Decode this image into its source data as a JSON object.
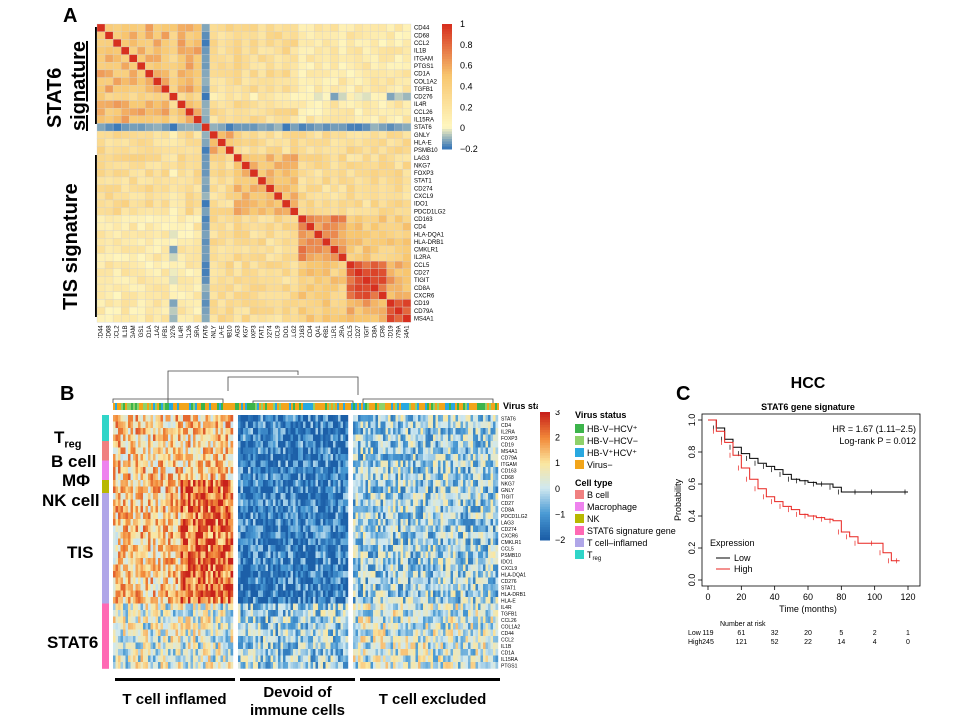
{
  "panels": {
    "a": {
      "letter": "A",
      "signature_labels": [
        {
          "text": "STAT6",
          "id": "stat6-main"
        },
        {
          "text": "signature",
          "id": "stat6-sub"
        },
        {
          "text": "TIS signature",
          "id": "tis"
        }
      ],
      "colorbar": {
        "ticks": [
          "1",
          "0.8",
          "0.6",
          "0.4",
          "0.2",
          "0",
          "−0.2"
        ],
        "min": -0.2,
        "max": 1
      },
      "colors": {
        "high": "#d7301f",
        "mid": "#fff7c0",
        "low": "#3a78b8"
      }
    },
    "b": {
      "letter": "B",
      "row_groups": [
        {
          "label": "T",
          "sub": "reg",
          "id": "treg"
        },
        {
          "label": "B cell",
          "sub": "",
          "id": "bcell"
        },
        {
          "label": "MΦ",
          "sub": "",
          "id": "mphi"
        },
        {
          "label": "NK cell",
          "sub": "",
          "id": "nk"
        },
        {
          "label": "TIS",
          "sub": "",
          "id": "tis"
        },
        {
          "label": "STAT6",
          "sub": "",
          "id": "stat6"
        }
      ],
      "clusters": [
        "T cell inflamed",
        "Devoid of\nimmune cells",
        "T cell excluded"
      ],
      "virus_status_label": "Virus status",
      "colorbar_ticks": [
        "3",
        "2",
        "1",
        "0",
        "−1",
        "−2"
      ],
      "legend_virus_title": "Virus status",
      "legend_virus": [
        {
          "label": "HB-V−HCV⁺",
          "color": "#3cb44b"
        },
        {
          "label": "HB-V−HCV−",
          "color": "#8fd16a"
        },
        {
          "label": "HB-V⁺HCV⁺",
          "color": "#29a8e0"
        },
        {
          "label": "Virus−",
          "color": "#f2a51a"
        }
      ],
      "legend_cell_title": "Cell type",
      "legend_cell": [
        {
          "label": "B cell",
          "color": "#f08080"
        },
        {
          "label": "Macrophage",
          "color": "#ee82ee"
        },
        {
          "label": "NK",
          "color": "#b8b800"
        },
        {
          "label": "STAT6 signature gene",
          "color": "#ff69b4"
        },
        {
          "label": "T cell–inflamed",
          "color": "#b0a6e8"
        },
        {
          "label": "T",
          "sub": "reg",
          "color": "#30d5c8"
        }
      ]
    },
    "c": {
      "letter": "C",
      "title": "HCC",
      "subtitle": "STAT6 gene signature",
      "hr_text": "HR = 1.67 (1.11–2.5)",
      "logrank_text": "Log-rank P = 0.012",
      "ylabel": "Probability",
      "xlabel": "Time (months)",
      "expression_title": "Expression",
      "number_at_risk_label": "Number at risk"
    }
  },
  "chart_data": [
    {
      "type": "heatmap",
      "genes": [
        "CD44",
        "CD68",
        "CCL2",
        "IL1B",
        "ITGAM",
        "PTGS1",
        "CD1A",
        "COL1A2",
        "TGFB1",
        "CD276",
        "IL4R",
        "CCL26",
        "IL15RA",
        "STAT6",
        "GNLY",
        "HLA-E",
        "PSMB10",
        "LAG3",
        "NKG7",
        "FOXP3",
        "STAT1",
        "CD274",
        "CXCL9",
        "IDO1",
        "PDCD1LG2",
        "CD163",
        "CD4",
        "HLA-DQA1",
        "HLA-DRB1",
        "CMKLR1",
        "IL2RA",
        "CCL5",
        "CD27",
        "TIGIT",
        "CD8A",
        "CXCR6",
        "CD19",
        "CD79A",
        "MS4A1"
      ],
      "value_range": [
        -0.2,
        1
      ]
    },
    {
      "type": "heatmap",
      "genes": [
        "STAT6",
        "CD4",
        "IL2RA",
        "FOXP3",
        "CD19",
        "MS4A1",
        "CD79A",
        "ITGAM",
        "CD163",
        "CD68",
        "NKG7",
        "GNLY",
        "TIGIT",
        "CD27",
        "CD8A",
        "PDCD1LG2",
        "LAG3",
        "CD274",
        "CXCR6",
        "CMKLR1",
        "CCL5",
        "PSMB10",
        "IDO1",
        "CXCL9",
        "HLA-DQA1",
        "CD276",
        "STAT1",
        "HLA-DRB1",
        "HLA-E",
        "IL4R",
        "TGFB1",
        "CCL26",
        "COL1A2",
        "CD44",
        "CCL2",
        "IL1B",
        "CD1A",
        "IL15RA",
        "PTGS1"
      ],
      "clusters": [
        "T cell inflamed",
        "Devoid of immune cells",
        "T cell excluded"
      ],
      "value_range": [
        -2,
        3
      ]
    },
    {
      "type": "line",
      "x_ticks": [
        0,
        20,
        40,
        60,
        80,
        100,
        120
      ],
      "y_ticks": [
        0.0,
        0.2,
        0.4,
        0.6,
        0.8,
        1.0
      ],
      "xlim": [
        0,
        120
      ],
      "ylim": [
        0,
        1
      ],
      "series": [
        {
          "name": "Low",
          "color": "#000000",
          "x": [
            0,
            5,
            10,
            15,
            20,
            25,
            30,
            35,
            40,
            45,
            50,
            55,
            60,
            65,
            70,
            75,
            80,
            90,
            100,
            120
          ],
          "y": [
            1.0,
            0.95,
            0.88,
            0.83,
            0.79,
            0.76,
            0.73,
            0.71,
            0.69,
            0.66,
            0.63,
            0.62,
            0.61,
            0.6,
            0.6,
            0.58,
            0.55,
            0.55,
            0.55,
            0.55
          ],
          "at_risk": [
            119,
            61,
            32,
            20,
            5,
            2,
            1
          ]
        },
        {
          "name": "High",
          "color": "#e8231f",
          "x": [
            0,
            5,
            10,
            15,
            20,
            25,
            30,
            35,
            40,
            45,
            50,
            55,
            60,
            65,
            70,
            75,
            80,
            85,
            90,
            100,
            105,
            110,
            115
          ],
          "y": [
            1.0,
            0.93,
            0.86,
            0.78,
            0.7,
            0.63,
            0.57,
            0.52,
            0.49,
            0.46,
            0.44,
            0.41,
            0.4,
            0.39,
            0.38,
            0.37,
            0.3,
            0.27,
            0.23,
            0.23,
            0.17,
            0.12,
            0.12
          ],
          "at_risk": [
            245,
            121,
            52,
            22,
            14,
            4,
            0
          ]
        }
      ]
    }
  ]
}
